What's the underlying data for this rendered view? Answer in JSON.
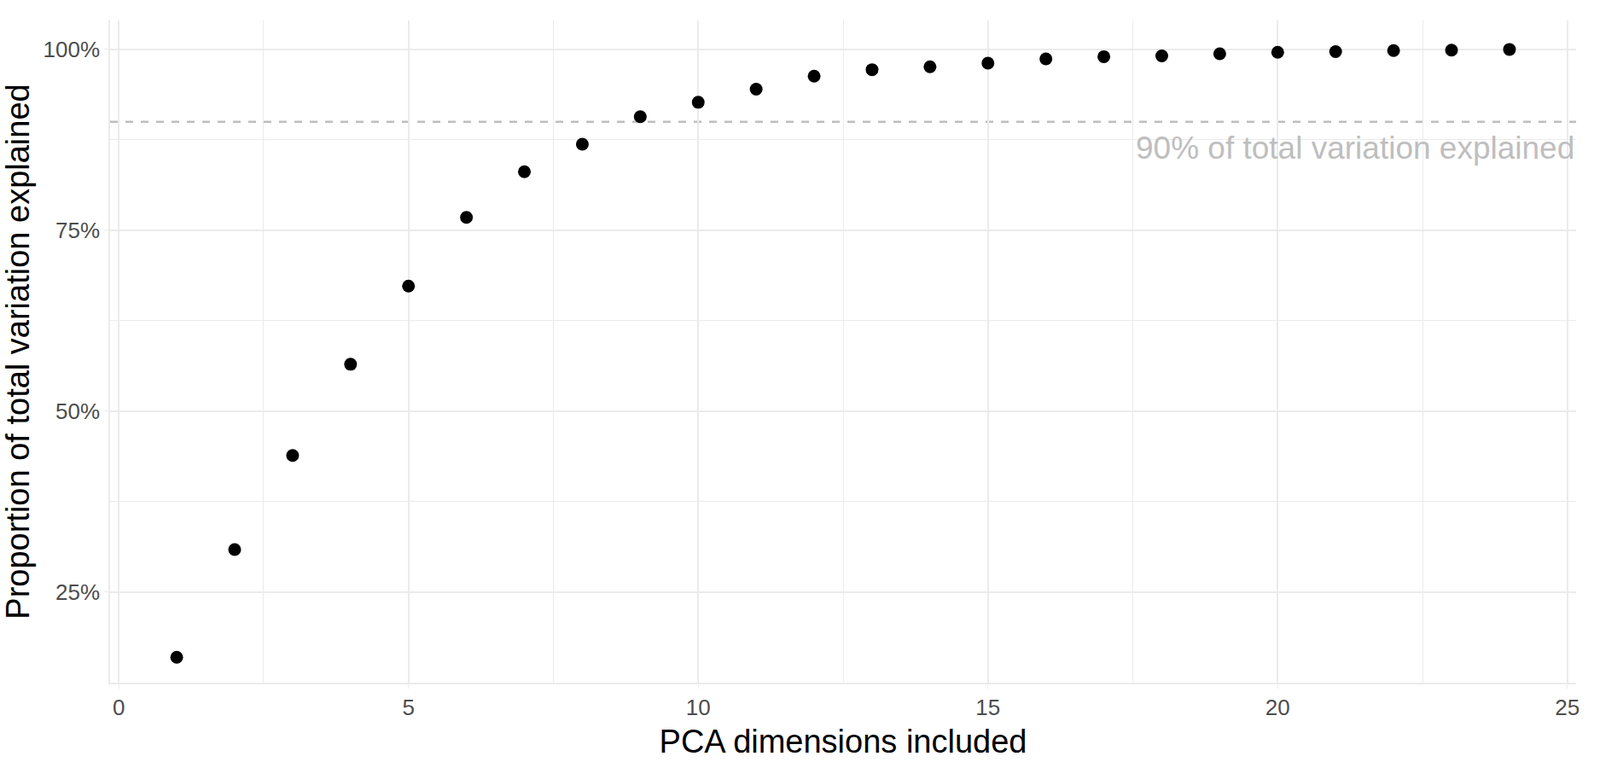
{
  "chart_data": {
    "type": "scatter",
    "x_label": "PCA dimensions included",
    "y_label": "Proportion of total variation explained",
    "x": [
      1,
      2,
      3,
      4,
      5,
      6,
      7,
      8,
      9,
      10,
      11,
      12,
      13,
      14,
      15,
      16,
      17,
      18,
      19,
      20,
      21,
      22,
      23,
      24
    ],
    "values": [
      16.0,
      30.9,
      43.9,
      56.5,
      67.3,
      76.8,
      83.1,
      86.9,
      90.7,
      92.7,
      94.5,
      96.3,
      97.2,
      97.6,
      98.1,
      98.7,
      99.0,
      99.1,
      99.4,
      99.6,
      99.7,
      99.85,
      99.9,
      100
    ],
    "color": "#000000",
    "marker": "circle",
    "xlim": [
      -0.15,
      25.15
    ],
    "ylim": [
      12.5,
      104
    ],
    "xticks": [
      0,
      5,
      10,
      15,
      20,
      25
    ],
    "yticks": [
      {
        "value": 25,
        "label": "25%"
      },
      {
        "value": 50,
        "label": "50%"
      },
      {
        "value": 75,
        "label": "75%"
      },
      {
        "value": 100,
        "label": "100%"
      }
    ],
    "grid": true,
    "reference_line": {
      "y": 90,
      "label": "90% of total variation explained",
      "color": "#bebebe",
      "line_style": "dash"
    }
  }
}
